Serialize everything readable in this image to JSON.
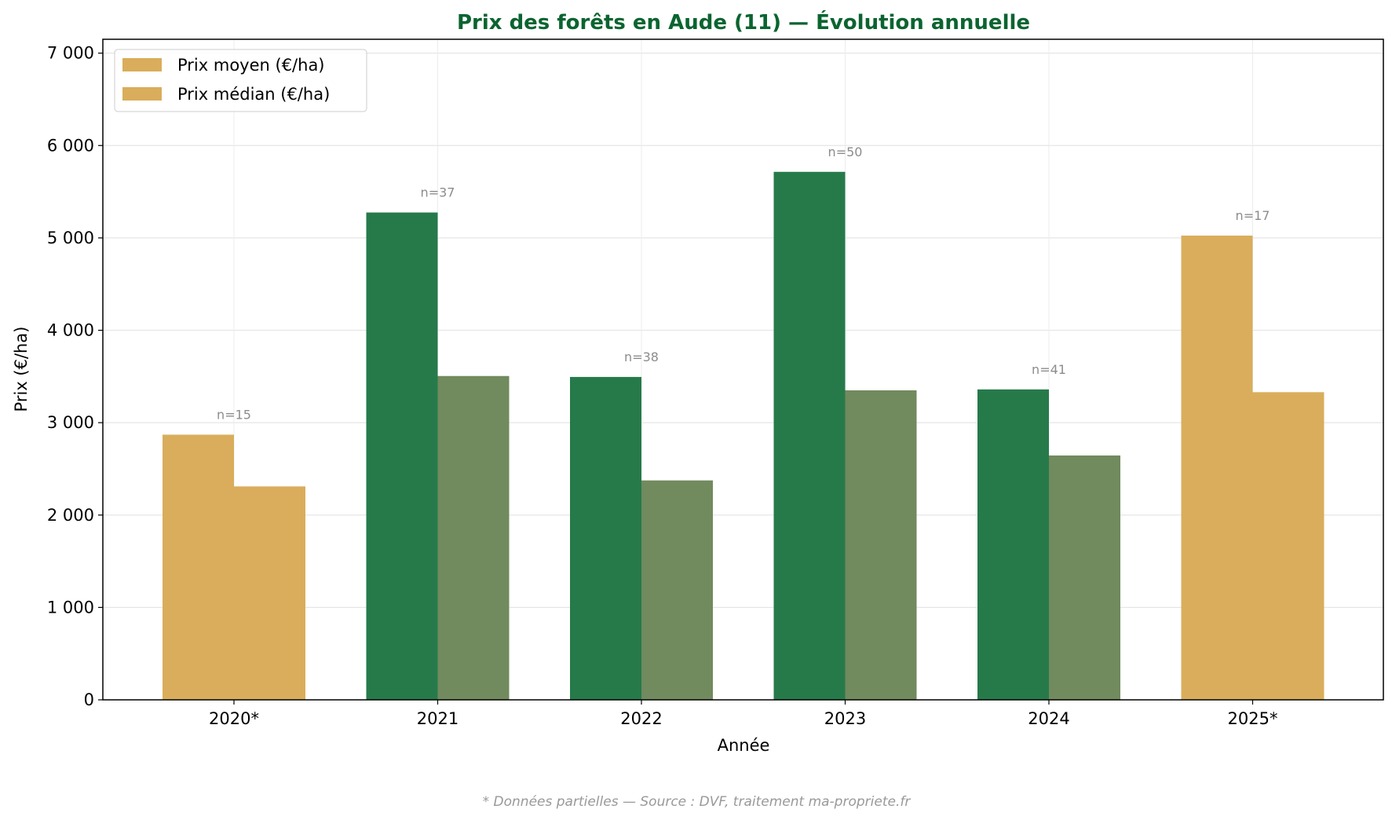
{
  "chart_data": {
    "type": "bar",
    "title": "Prix des forêts en Aude (11) — Évolution annuelle",
    "xlabel": "Année",
    "ylabel": "Prix (€/ha)",
    "categories": [
      "2020*",
      "2021",
      "2022",
      "2023",
      "2024",
      "2025*"
    ],
    "partial": [
      true,
      false,
      false,
      false,
      false,
      true
    ],
    "series": [
      {
        "name": "Prix moyen (€/ha)",
        "values": [
          2870,
          5275,
          3495,
          5715,
          3360,
          5025
        ],
        "color": "#267a4a"
      },
      {
        "name": "Prix médian (€/ha)",
        "values": [
          2310,
          3505,
          2375,
          3350,
          2645,
          3330
        ],
        "color": "#718a5e"
      }
    ],
    "partial_color": "#d9ad5b",
    "annotations": [
      "n=15",
      "n=37",
      "n=38",
      "n=50",
      "n=41",
      "n=17"
    ],
    "ylim": [
      0,
      7150
    ],
    "yticks": [
      0,
      1000,
      2000,
      3000,
      4000,
      5000,
      6000,
      7000
    ],
    "ytick_labels": [
      "0",
      "1 000",
      "2 000",
      "3 000",
      "4 000",
      "5 000",
      "6 000",
      "7 000"
    ],
    "grid": true,
    "legend_position": "top-left",
    "title_color": "#0b6430",
    "footnote": "* Données partielles — Source : DVF, traitement ma-propriete.fr"
  }
}
